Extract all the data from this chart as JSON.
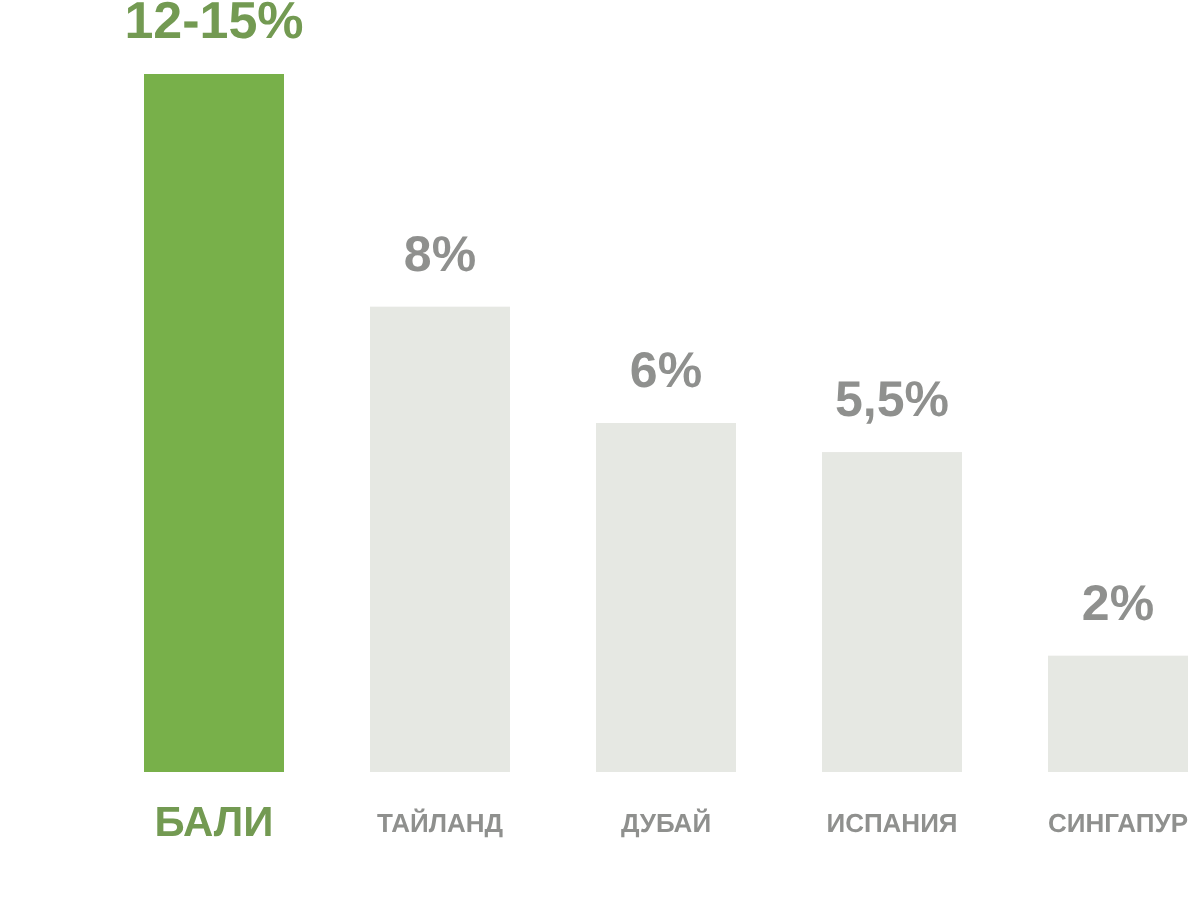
{
  "chart_data": {
    "type": "bar",
    "categories": [
      "БАЛИ",
      "ТАЙЛАНД",
      "ДУБАЙ",
      "ИСПАНИЯ",
      "СИНГАПУР"
    ],
    "values": [
      12,
      8,
      6,
      5.5,
      2
    ],
    "value_labels": [
      "12-15%",
      "8%",
      "6%",
      "5,5%",
      "2%"
    ],
    "colors": [
      "#78b04a",
      "#e6e8e3",
      "#e6e8e3",
      "#e6e8e3",
      "#e6e8e3"
    ]
  }
}
